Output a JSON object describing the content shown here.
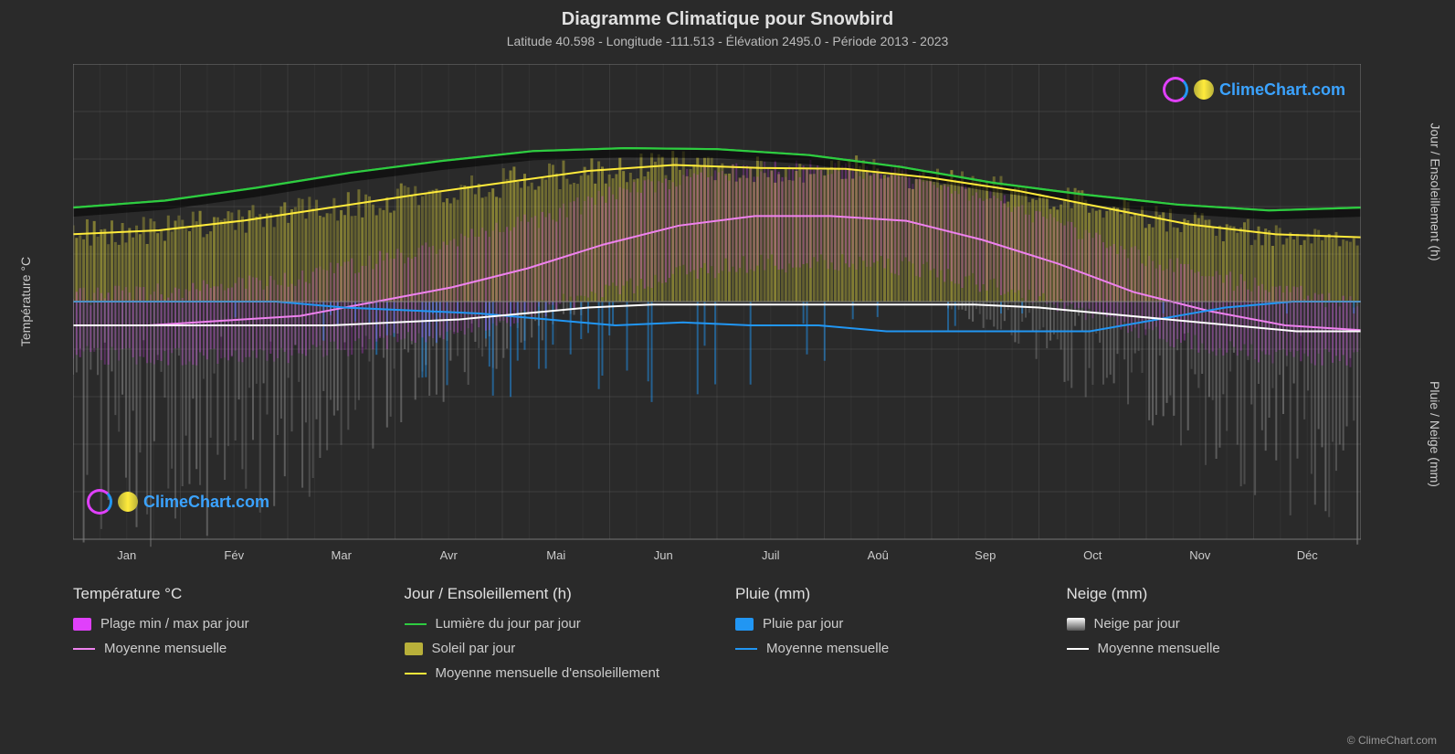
{
  "title": "Diagramme Climatique pour Snowbird",
  "subtitle": "Latitude 40.598 - Longitude -111.513 - Élévation 2495.0 - Période 2013 - 2023",
  "brand": "ClimeChart.com",
  "brand_color": "#3ba3ff",
  "copyright": "© ClimeChart.com",
  "background_color": "#2a2a2a",
  "plot_background": "#2a2a2a",
  "grid_color": "#555555",
  "text_color": "#cccccc",
  "months": [
    "Jan",
    "Fév",
    "Mar",
    "Avr",
    "Mai",
    "Jun",
    "Juil",
    "Aoû",
    "Sep",
    "Oct",
    "Nov",
    "Déc"
  ],
  "left_axis": {
    "label": "Température °C",
    "min": -50,
    "max": 50,
    "ticks": [
      -50,
      -40,
      -30,
      -20,
      -10,
      0,
      10,
      20,
      30,
      40,
      50
    ]
  },
  "right_axis_top": {
    "label": "Jour / Ensoleillement (h)",
    "min": 0,
    "max": 24,
    "ticks": [
      0,
      6,
      12,
      18,
      24
    ]
  },
  "right_axis_bot": {
    "label": "Pluie / Neige (mm)",
    "min": 0,
    "max": 40,
    "ticks": [
      0,
      10,
      20,
      30,
      40
    ]
  },
  "series": {
    "daylight": {
      "color": "#2ecc40",
      "values": [
        9.5,
        10.2,
        11.5,
        13.0,
        14.2,
        15.2,
        15.5,
        15.4,
        14.8,
        13.6,
        12.0,
        10.8,
        9.8,
        9.2,
        9.5
      ]
    },
    "sunshine_avg": {
      "color": "#ffeb3b",
      "values": [
        6.8,
        7.2,
        8.2,
        9.5,
        10.8,
        12.0,
        13.2,
        13.8,
        13.5,
        13.4,
        12.5,
        11.2,
        9.5,
        7.8,
        6.8,
        6.5
      ]
    },
    "temp_avg": {
      "color": "#ee82ee",
      "values": [
        -5,
        -5,
        -4,
        -3,
        0,
        3,
        7,
        12,
        16,
        18,
        18,
        17,
        13,
        8,
        2,
        -2,
        -5,
        -6
      ]
    },
    "rain_avg": {
      "color": "#2196f3",
      "values": [
        0,
        0,
        0,
        0,
        -1,
        -1.5,
        -2,
        -3,
        -4,
        -3.5,
        -4,
        -4,
        -5,
        -5,
        -5,
        -5,
        -3,
        -1,
        0,
        0
      ]
    },
    "snow_avg": {
      "color": "#ffffff",
      "values": [
        -4,
        -4,
        -4,
        -4,
        -4,
        -3.5,
        -3,
        -2,
        -1,
        -0.5,
        -0.5,
        -0.5,
        -0.5,
        -0.5,
        -0.5,
        -1,
        -2,
        -3,
        -4,
        -5,
        -5
      ]
    },
    "temp_range_fill": "#e040fb",
    "sun_fill": "#b8b03a",
    "rain_fill": "#2196f3",
    "snow_fill": "#999999"
  },
  "legend": {
    "temp": {
      "title": "Température °C",
      "range": "Plage min / max par jour",
      "avg": "Moyenne mensuelle"
    },
    "day": {
      "title": "Jour / Ensoleillement (h)",
      "daylight": "Lumière du jour par jour",
      "sun": "Soleil par jour",
      "sunavg": "Moyenne mensuelle d'ensoleillement"
    },
    "rain": {
      "title": "Pluie (mm)",
      "daily": "Pluie par jour",
      "avg": "Moyenne mensuelle"
    },
    "snow": {
      "title": "Neige (mm)",
      "daily": "Neige par jour",
      "avg": "Moyenne mensuelle"
    }
  }
}
